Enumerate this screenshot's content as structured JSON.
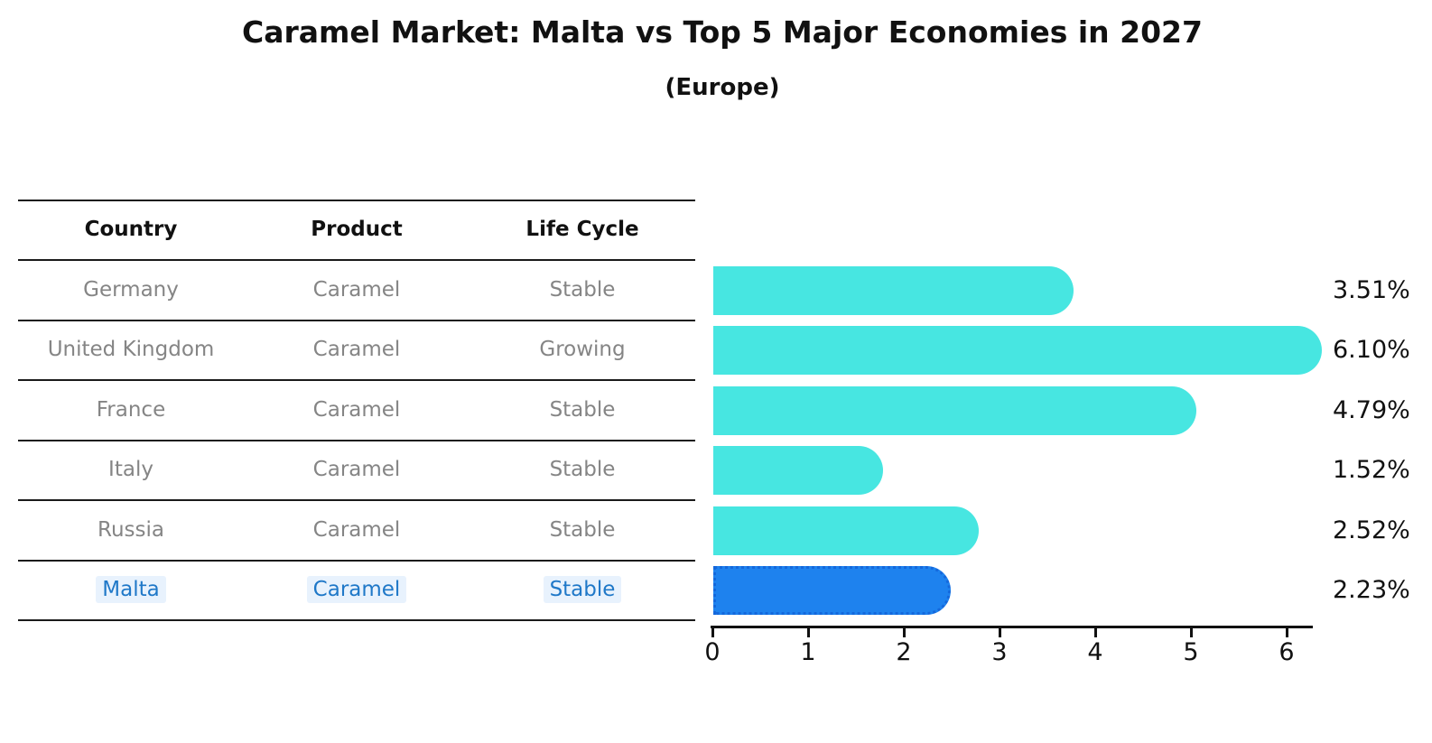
{
  "title": "Caramel Market: Malta vs Top 5 Major Economies in 2027",
  "subtitle": "(Europe)",
  "table": {
    "headers": {
      "country": "Country",
      "product": "Product",
      "life_cycle": "Life Cycle"
    },
    "rows": [
      {
        "country": "Germany",
        "product": "Caramel",
        "life_cycle": "Stable"
      },
      {
        "country": "United Kingdom",
        "product": "Caramel",
        "life_cycle": "Growing"
      },
      {
        "country": "France",
        "product": "Caramel",
        "life_cycle": "Stable"
      },
      {
        "country": "Italy",
        "product": "Caramel",
        "life_cycle": "Stable"
      },
      {
        "country": "Russia",
        "product": "Caramel",
        "life_cycle": "Stable"
      },
      {
        "country": "Malta",
        "product": "Caramel",
        "life_cycle": "Stable"
      }
    ]
  },
  "chart_data": {
    "type": "bar",
    "orientation": "horizontal",
    "title": "Caramel Market: Malta vs Top 5 Major Economies in 2027 (Europe)",
    "categories": [
      "Germany",
      "United Kingdom",
      "France",
      "Italy",
      "Russia",
      "Malta"
    ],
    "values": [
      3.51,
      6.1,
      4.79,
      1.52,
      2.52,
      2.23
    ],
    "value_labels": [
      "3.51%",
      "6.10%",
      "4.79%",
      "1.52%",
      "2.52%",
      "2.23%"
    ],
    "unit": "%",
    "x_ticks": [
      "0",
      "1",
      "2",
      "3",
      "4",
      "5",
      "6"
    ],
    "xlim": [
      0,
      6.3
    ],
    "grid": false,
    "legend": "none",
    "highlight_index": 5,
    "highlight_category": "Malta"
  },
  "colors": {
    "background": "#FFFFFF",
    "bar": "#47E6E1",
    "highlight_bar": "#1E82EE",
    "highlight_border": "#1468DC",
    "highlight_text": "#1F78C8",
    "table_text": "#858585",
    "line": "#1A1A1A"
  }
}
